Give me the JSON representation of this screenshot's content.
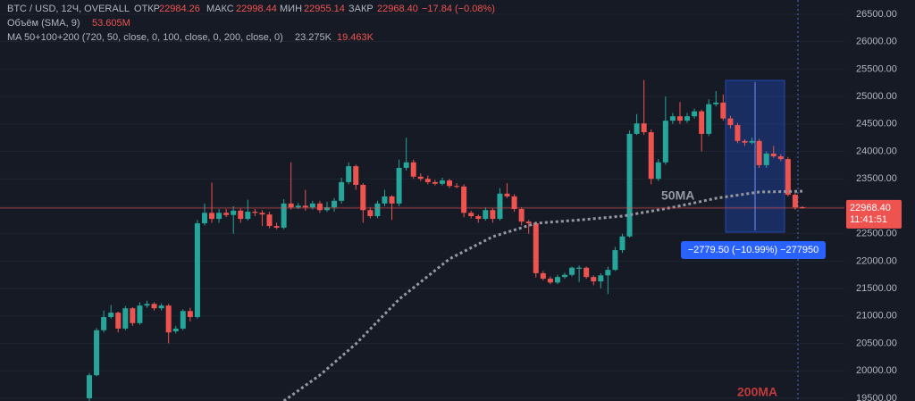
{
  "chart_data": {
    "type": "candlestick",
    "title": "BTC / USD, 12Ч, OVERALL",
    "ohlc_labels": [
      {
        "label": "ОТКР",
        "value": "22984.26"
      },
      {
        "label": "МАКС",
        "value": "22998.44"
      },
      {
        "label": "МИН",
        "value": "22955.14"
      },
      {
        "label": "ЗАКР",
        "value": "22968.40"
      }
    ],
    "change": "−17.84 (−0.08%)",
    "volume_label": "Объём (SMA, 9)",
    "volume_value": "53.605M",
    "ma_label": "MA 50+100+200 (720, 50, close, 0, 100, close, 0, 200, close, 0)",
    "ma_values": [
      "23.275K",
      "19.463K"
    ],
    "up_color": "#26a69a",
    "down_color": "#ef5350",
    "ylim": [
      19450,
      26760
    ],
    "yticks": [
      {
        "value": 19500,
        "label": "19500.00"
      },
      {
        "value": 20000,
        "label": "20000.00"
      },
      {
        "value": 20500,
        "label": "20500.00"
      },
      {
        "value": 21000,
        "label": "21000.00"
      },
      {
        "value": 21500,
        "label": "21500.00"
      },
      {
        "value": 22000,
        "label": "22000.00"
      },
      {
        "value": 22500,
        "label": "22500.00"
      },
      {
        "value": 23000,
        "label": "23000.00"
      },
      {
        "value": 23500,
        "label": "23500.00"
      },
      {
        "value": 24000,
        "label": "24000.00"
      },
      {
        "value": 24500,
        "label": "24500.00"
      },
      {
        "value": 25000,
        "label": "25000.00"
      },
      {
        "value": 25500,
        "label": "25500.00"
      },
      {
        "value": 26000,
        "label": "26000.00"
      },
      {
        "value": 26500,
        "label": "26500.00"
      }
    ],
    "grid": true,
    "open": [
      19500,
      19920,
      20740,
      20980,
      21060,
      20770,
      21140,
      20870,
      21190,
      21220,
      21140,
      21190,
      20720,
      20770,
      21090,
      20980,
      22690,
      22880,
      22770,
      22880,
      22840,
      22920,
      22770,
      22900,
      22880,
      22850,
      22640,
      22610,
      23050,
      22980,
      23010,
      22980,
      23050,
      22930,
      22980,
      23100,
      23440,
      23730,
      23390,
      22930,
      22820,
      23050,
      23180,
      23050,
      23700,
      23800,
      23540,
      23500,
      23440,
      23410,
      23470,
      23370,
      23360,
      22880,
      22820,
      22770,
      22930,
      22770,
      23230,
      23180,
      22950,
      22720,
      22690,
      21780,
      21680,
      21610,
      21710,
      21750,
      21860,
      21880,
      21710,
      21630,
      21740,
      21840,
      22200,
      22450,
      24320,
      24510,
      24350,
      23500,
      23800,
      24560,
      24640,
      24560,
      24640,
      24730,
      24320,
      24860,
      24890,
      24600,
      24480,
      24190,
      24160,
      24190,
      23750,
      23960,
      23910,
      23860,
      23210,
      22984.26
    ],
    "high": [
      19960,
      20780,
      21100,
      21200,
      21080,
      21180,
      21160,
      21250,
      21280,
      21250,
      21230,
      21220,
      20820,
      21120,
      21150,
      22750,
      23050,
      23430,
      22950,
      22950,
      23000,
      22960,
      23120,
      22950,
      22930,
      22900,
      22700,
      23130,
      23800,
      23060,
      23300,
      23100,
      23100,
      23080,
      23150,
      23520,
      23800,
      23760,
      23420,
      22980,
      23100,
      23300,
      23200,
      23850,
      24250,
      23850,
      23600,
      23560,
      23480,
      23520,
      23500,
      23420,
      23400,
      22920,
      22850,
      22980,
      22960,
      23330,
      23420,
      23220,
      22980,
      22750,
      22720,
      21820,
      21720,
      21750,
      21790,
      21900,
      21920,
      21900,
      21740,
      21780,
      21900,
      22260,
      22500,
      24380,
      24680,
      25300,
      24400,
      23860,
      25000,
      24700,
      24900,
      24700,
      24780,
      24760,
      24950,
      25100,
      25040,
      24650,
      24520,
      24220,
      24250,
      24230,
      24000,
      24100,
      23950,
      23900,
      23250,
      22998.44
    ],
    "low": [
      19450,
      19900,
      20700,
      20950,
      20700,
      20740,
      20820,
      20840,
      21150,
      21100,
      21100,
      20500,
      20680,
      20740,
      20900,
      20950,
      22650,
      22700,
      22700,
      22800,
      22500,
      22700,
      22740,
      22820,
      22640,
      22600,
      22580,
      22580,
      22940,
      22950,
      22920,
      22940,
      22880,
      22900,
      22900,
      23050,
      23400,
      23300,
      22700,
      22780,
      22780,
      23000,
      22750,
      23000,
      23650,
      23500,
      23460,
      23400,
      23380,
      23380,
      23330,
      23330,
      22800,
      22780,
      22700,
      22740,
      22700,
      22740,
      23150,
      22900,
      22650,
      22500,
      21700,
      21650,
      21580,
      21580,
      21680,
      21720,
      21620,
      21680,
      21560,
      21500,
      21400,
      21820,
      22150,
      22430,
      24300,
      24300,
      23400,
      23460,
      23760,
      24500,
      24500,
      24520,
      24600,
      24000,
      24280,
      24820,
      24560,
      24420,
      24150,
      24100,
      24130,
      23700,
      23700,
      23880,
      23820,
      23180,
      22940,
      22955.14
    ],
    "close": [
      19920,
      20740,
      20980,
      21060,
      20770,
      21140,
      20870,
      21190,
      21220,
      21140,
      21190,
      20700,
      20770,
      21090,
      20980,
      22690,
      22880,
      22770,
      22880,
      22840,
      22920,
      22770,
      22900,
      22880,
      22850,
      22640,
      22610,
      23050,
      22980,
      23010,
      22980,
      23050,
      22930,
      22980,
      23100,
      23440,
      23730,
      23390,
      22930,
      22820,
      23050,
      23180,
      23050,
      23700,
      23800,
      23540,
      23500,
      23440,
      23410,
      23470,
      23370,
      23360,
      22880,
      22820,
      22770,
      22930,
      22770,
      23230,
      23180,
      22950,
      22720,
      22690,
      21780,
      21680,
      21610,
      21710,
      21750,
      21880,
      21880,
      21710,
      21630,
      21740,
      21840,
      22200,
      22450,
      24320,
      24510,
      24350,
      23500,
      23800,
      24560,
      24640,
      24560,
      24640,
      24730,
      24320,
      24860,
      24890,
      24600,
      24480,
      24190,
      24160,
      24190,
      23750,
      23960,
      23910,
      23860,
      23210,
      22980,
      22968.4
    ],
    "last_price_label": "22968.40",
    "countdown": "11:41:51",
    "ma_line": {
      "name": "50MA",
      "color": "#9598a1",
      "x": [
        27,
        32,
        37,
        43,
        50,
        56,
        62,
        68,
        74,
        81,
        87,
        93,
        99
      ],
      "values": [
        19450,
        19920,
        20490,
        21305,
        22040,
        22445,
        22690,
        22750,
        22820,
        22980,
        23145,
        23260,
        23275
      ]
    },
    "annotation_200ma": "200MA",
    "measure_label": "−2779.50 (−10.99%) −277950"
  }
}
